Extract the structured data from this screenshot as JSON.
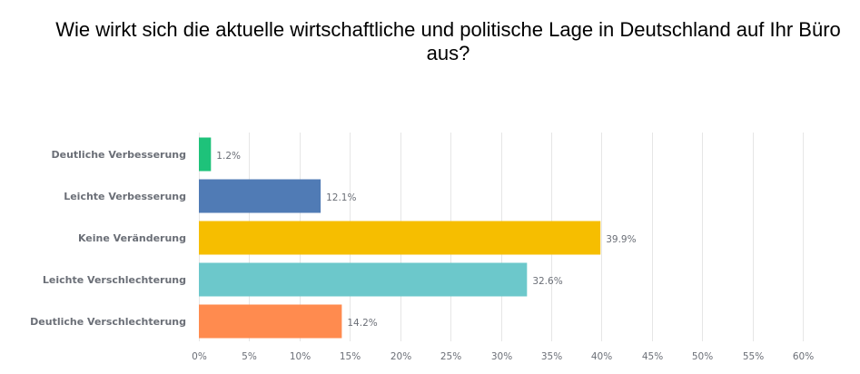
{
  "chart_data": {
    "type": "bar",
    "orientation": "horizontal",
    "title": "Wie wirkt sich die aktuelle wirtschaftliche und politische Lage in Deutschland auf Ihr Büro aus?",
    "xlabel": "",
    "ylabel": "",
    "categories": [
      "Deutliche Verbesserung",
      "Leichte Verbesserung",
      "Keine Veränderung",
      "Leichte Verschlechterung",
      "Deutliche Verschlechterung"
    ],
    "values": [
      1.2,
      12.1,
      39.9,
      32.6,
      14.2
    ],
    "value_labels": [
      "1.2%",
      "12.1%",
      "39.9%",
      "32.6%",
      "14.2%"
    ],
    "colors": [
      "#1ec27a",
      "#507bb5",
      "#f6be00",
      "#6cc8cb",
      "#ff8b4f"
    ],
    "xlim": [
      0,
      60
    ],
    "xticks": [
      0,
      5,
      10,
      15,
      20,
      25,
      30,
      35,
      40,
      45,
      50,
      55,
      60
    ],
    "xtick_labels": [
      "0%",
      "5%",
      "10%",
      "15%",
      "20%",
      "25%",
      "30%",
      "35%",
      "40%",
      "45%",
      "50%",
      "55%",
      "60%"
    ],
    "grid": true,
    "legend": "none"
  }
}
